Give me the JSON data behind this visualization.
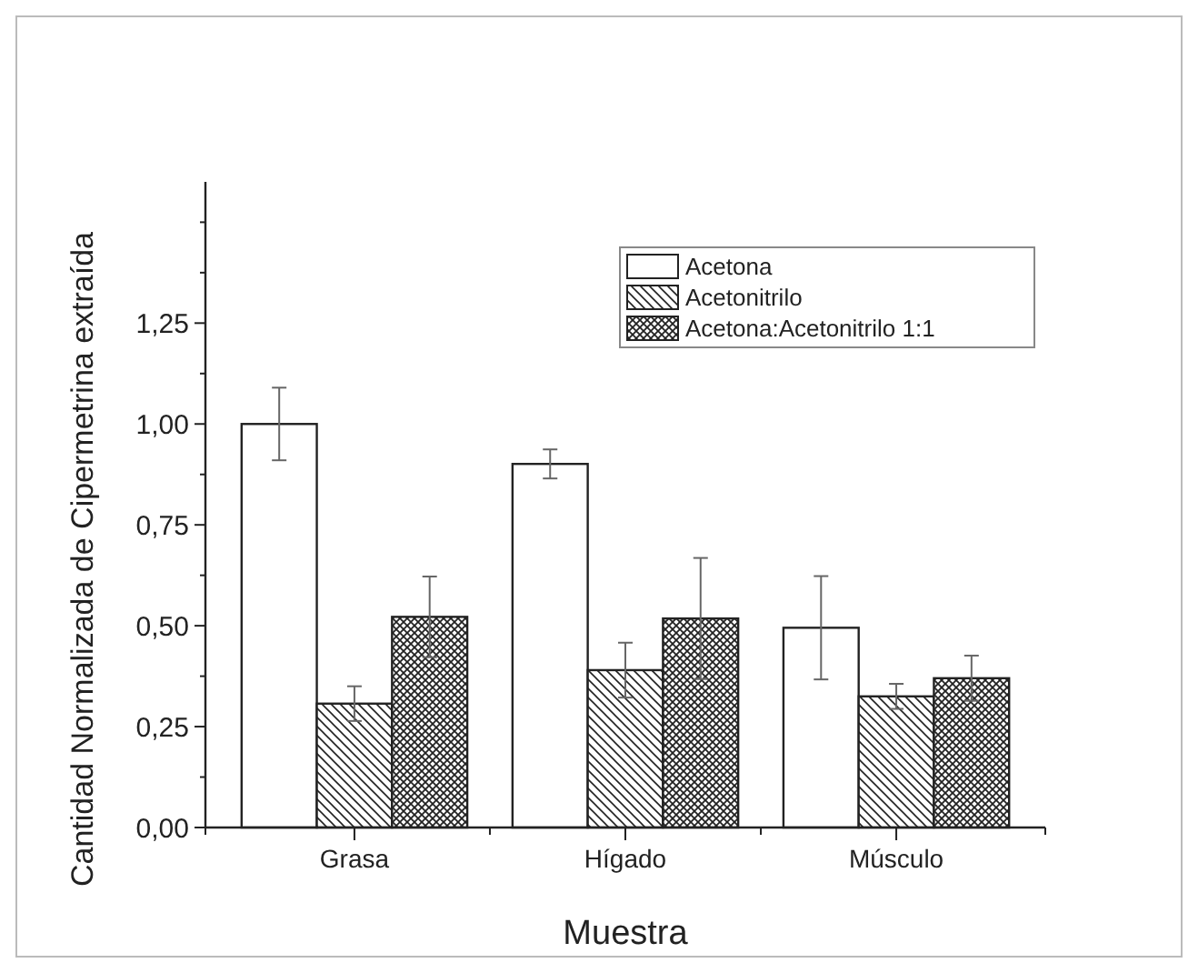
{
  "chart_data": {
    "type": "bar",
    "xlabel": "Muestra",
    "ylabel": "Cantidad Normalizada de Cipermetrina extraída",
    "categories": [
      "Grasa",
      "Hígado",
      "Músculo"
    ],
    "series": [
      {
        "name": "Acetona",
        "color": "#ffffff",
        "values": [
          1.0,
          0.901,
          0.495
        ],
        "errors": [
          0.09,
          0.036,
          0.128
        ]
      },
      {
        "name": "Acetonitrilo",
        "color": "#222222",
        "values": [
          0.307,
          0.39,
          0.325
        ],
        "errors": [
          0.043,
          0.068,
          0.031
        ]
      },
      {
        "name": "Acetona:Acetonitrilo 1:1",
        "color": "#222222",
        "values": [
          0.522,
          0.518,
          0.37
        ],
        "errors": [
          0.1,
          0.15,
          0.056
        ]
      }
    ],
    "ylim": [
      0,
      1.6
    ],
    "yticks": [
      {
        "value": 0,
        "label": "0,00"
      },
      {
        "value": 0.125,
        "label": null
      },
      {
        "value": 0.25,
        "label": "0,25"
      },
      {
        "value": 0.375,
        "label": null
      },
      {
        "value": 0.5,
        "label": "0,50"
      },
      {
        "value": 0.625,
        "label": null
      },
      {
        "value": 0.75,
        "label": "0,75"
      },
      {
        "value": 0.875,
        "label": null
      },
      {
        "value": 1,
        "label": "1,00"
      },
      {
        "value": 1.125,
        "label": null
      },
      {
        "value": 1.25,
        "label": "1,25"
      },
      {
        "value": 1.375,
        "label": null
      },
      {
        "value": 1.5,
        "label": null
      }
    ],
    "legend": "top right",
    "grid": false
  }
}
